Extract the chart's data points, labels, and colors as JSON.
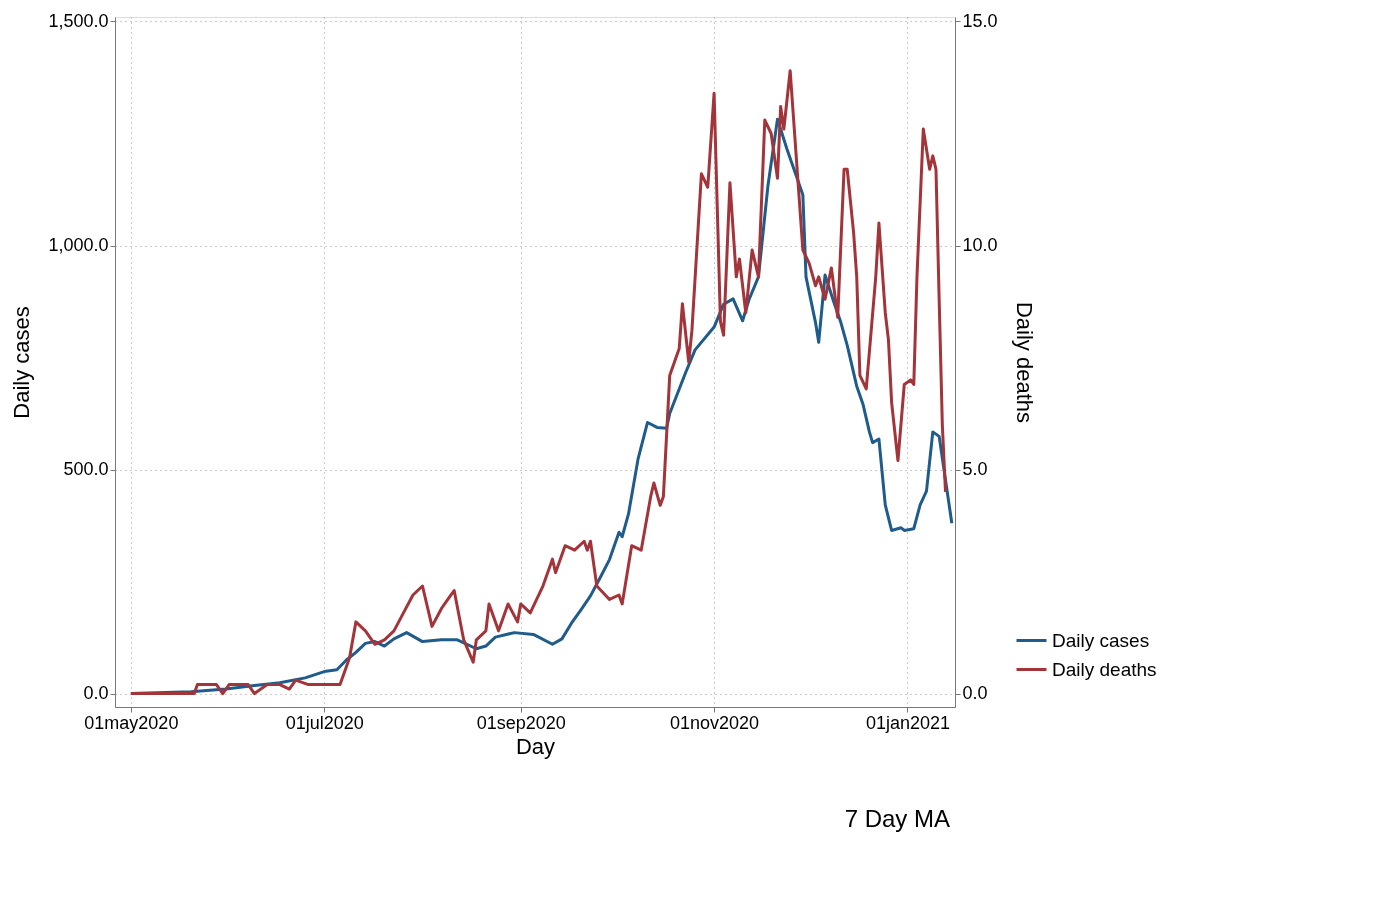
{
  "chart_data": {
    "type": "line",
    "xlabel": "Day",
    "ylabel": "Daily cases",
    "y2label": "Daily deaths",
    "annotations": [
      "7 Day MA"
    ],
    "xlim": [
      "2020-04-26",
      "2021-01-16"
    ],
    "xticks": [
      {
        "value": "2020-05-01",
        "label": "01may2020"
      },
      {
        "value": "2020-07-01",
        "label": "01jul2020"
      },
      {
        "value": "2020-09-01",
        "label": "01sep2020"
      },
      {
        "value": "2020-11-01",
        "label": "01nov2020"
      },
      {
        "value": "2021-01-01",
        "label": "01jan2021"
      }
    ],
    "ylim": [
      -30,
      1510
    ],
    "yticks": [
      {
        "value": 0,
        "label": "0.0"
      },
      {
        "value": 500,
        "label": "500.0"
      },
      {
        "value": 1000,
        "label": "1,000.0"
      },
      {
        "value": 1500,
        "label": "1,500.0"
      }
    ],
    "y2lim": [
      -0.3,
      15.1
    ],
    "y2ticks": [
      {
        "value": 0,
        "label": "0.0"
      },
      {
        "value": 5,
        "label": "5.0"
      },
      {
        "value": 10,
        "label": "10.0"
      },
      {
        "value": 15,
        "label": "15.0"
      }
    ],
    "grid": true,
    "legend": "right",
    "line_style": "solid",
    "marker": "none",
    "series": [
      {
        "name": "Daily cases",
        "color": "#1f5c8b",
        "x": [
          "2020-05-01",
          "2020-05-20",
          "2020-05-31",
          "2020-06-09",
          "2020-06-17",
          "2020-06-25",
          "2020-07-01",
          "2020-07-05",
          "2020-07-08",
          "2020-07-11",
          "2020-07-14",
          "2020-07-17",
          "2020-07-20",
          "2020-07-23",
          "2020-07-27",
          "2020-08-01",
          "2020-08-07",
          "2020-08-12",
          "2020-08-18",
          "2020-08-21",
          "2020-08-24",
          "2020-08-30",
          "2020-09-05",
          "2020-09-11",
          "2020-09-14",
          "2020-09-17",
          "2020-09-20",
          "2020-09-23",
          "2020-09-26",
          "2020-09-29",
          "2020-10-02",
          "2020-10-03",
          "2020-10-05",
          "2020-10-08",
          "2020-10-11",
          "2020-10-14",
          "2020-10-17",
          "2020-10-18",
          "2020-10-23",
          "2020-10-26",
          "2020-11-01",
          "2020-11-04",
          "2020-11-07",
          "2020-11-10",
          "2020-11-12",
          "2020-11-15",
          "2020-11-18",
          "2020-11-21",
          "2020-11-24",
          "2020-11-27",
          "2020-11-29",
          "2020-11-30",
          "2020-12-03",
          "2020-12-04",
          "2020-12-06",
          "2020-12-09",
          "2020-12-11",
          "2020-12-13",
          "2020-12-16",
          "2020-12-18",
          "2020-12-20",
          "2020-12-21",
          "2020-12-23",
          "2020-12-25",
          "2020-12-27",
          "2020-12-30",
          "2020-12-31",
          "2021-01-03",
          "2021-01-05",
          "2021-01-07",
          "2021-01-09",
          "2021-01-11",
          "2021-01-15"
        ],
        "values": [
          0,
          4,
          10,
          18,
          24,
          35,
          49,
          53,
          75,
          92,
          112,
          116,
          106,
          122,
          136,
          116,
          120,
          120,
          100,
          106,
          126,
          136,
          132,
          110,
          122,
          157,
          187,
          218,
          258,
          299,
          360,
          350,
          401,
          523,
          605,
          594,
          592,
          625,
          716,
          767,
          818,
          869,
          881,
          832,
          879,
          930,
          1134,
          1282,
          1215,
          1154,
          1113,
          930,
          828,
          784,
          934,
          869,
          828,
          777,
          686,
          645,
          584,
          560,
          568,
          421,
          364,
          370,
          364,
          368,
          421,
          452,
          584,
          574,
          380
        ]
      },
      {
        "name": "Daily deaths",
        "color": "#a3343a",
        "axis": "y2",
        "x": [
          "2020-05-01",
          "2020-05-21",
          "2020-05-22",
          "2020-05-28",
          "2020-05-30",
          "2020-06-01",
          "2020-06-07",
          "2020-06-09",
          "2020-06-13",
          "2020-06-17",
          "2020-06-20",
          "2020-06-22",
          "2020-06-26",
          "2020-07-06",
          "2020-07-09",
          "2020-07-11",
          "2020-07-14",
          "2020-07-17",
          "2020-07-20",
          "2020-07-23",
          "2020-07-26",
          "2020-07-29",
          "2020-08-01",
          "2020-08-04",
          "2020-08-07",
          "2020-08-10",
          "2020-08-11",
          "2020-08-14",
          "2020-08-17",
          "2020-08-18",
          "2020-08-21",
          "2020-08-22",
          "2020-08-25",
          "2020-08-28",
          "2020-08-31",
          "2020-09-01",
          "2020-09-04",
          "2020-09-08",
          "2020-09-11",
          "2020-09-12",
          "2020-09-15",
          "2020-09-18",
          "2020-09-21",
          "2020-09-22",
          "2020-09-23",
          "2020-09-25",
          "2020-09-29",
          "2020-10-02",
          "2020-10-03",
          "2020-10-06",
          "2020-10-09",
          "2020-10-12",
          "2020-10-13",
          "2020-10-15",
          "2020-10-16",
          "2020-10-18",
          "2020-10-21",
          "2020-10-22",
          "2020-10-24",
          "2020-10-25",
          "2020-10-28",
          "2020-10-30",
          "2020-11-01",
          "2020-11-03",
          "2020-11-04",
          "2020-11-06",
          "2020-11-08",
          "2020-11-09",
          "2020-11-11",
          "2020-11-13",
          "2020-11-15",
          "2020-11-17",
          "2020-11-19",
          "2020-11-21",
          "2020-11-22",
          "2020-11-23",
          "2020-11-25",
          "2020-11-26",
          "2020-11-29",
          "2020-12-01",
          "2020-12-03",
          "2020-12-04",
          "2020-12-06",
          "2020-12-08",
          "2020-12-10",
          "2020-12-12",
          "2020-12-13",
          "2020-12-15",
          "2020-12-16",
          "2020-12-17",
          "2020-12-19",
          "2020-12-22",
          "2020-12-23",
          "2020-12-25",
          "2020-12-26",
          "2020-12-27",
          "2020-12-29",
          "2020-12-31",
          "2021-01-02",
          "2021-01-03",
          "2021-01-04",
          "2021-01-06",
          "2021-01-08",
          "2021-01-09",
          "2021-01-10",
          "2021-01-11",
          "2021-01-12",
          "2021-01-13"
        ],
        "values": [
          0,
          0,
          0.2,
          0.2,
          0,
          0.2,
          0.2,
          0,
          0.2,
          0.2,
          0.1,
          0.3,
          0.2,
          0.2,
          0.8,
          1.6,
          1.4,
          1.1,
          1.2,
          1.4,
          1.8,
          2.2,
          2.4,
          1.5,
          1.9,
          2.2,
          2.3,
          1.2,
          0.7,
          1.2,
          1.4,
          2.0,
          1.4,
          2.0,
          1.6,
          2.0,
          1.8,
          2.4,
          3.0,
          2.7,
          3.3,
          3.2,
          3.4,
          3.2,
          3.4,
          2.4,
          2.1,
          2.2,
          2.0,
          3.3,
          3.2,
          4.4,
          4.7,
          4.2,
          4.4,
          7.1,
          7.7,
          8.7,
          7.4,
          8.1,
          11.6,
          11.3,
          13.4,
          8.3,
          8.0,
          11.4,
          9.3,
          9.7,
          8.5,
          9.9,
          9.3,
          12.8,
          12.5,
          11.5,
          13.1,
          12.6,
          13.9,
          12.9,
          9.9,
          9.6,
          9.1,
          9.3,
          8.8,
          9.5,
          8.4,
          11.7,
          11.7,
          10.3,
          9.3,
          7.1,
          6.8,
          9.3,
          10.5,
          8.5,
          7.9,
          6.5,
          5.2,
          6.9,
          7.0,
          6.9,
          9.3,
          12.6,
          11.7,
          12.0,
          11.7,
          8.8,
          6.0,
          4.5
        ]
      }
    ]
  }
}
